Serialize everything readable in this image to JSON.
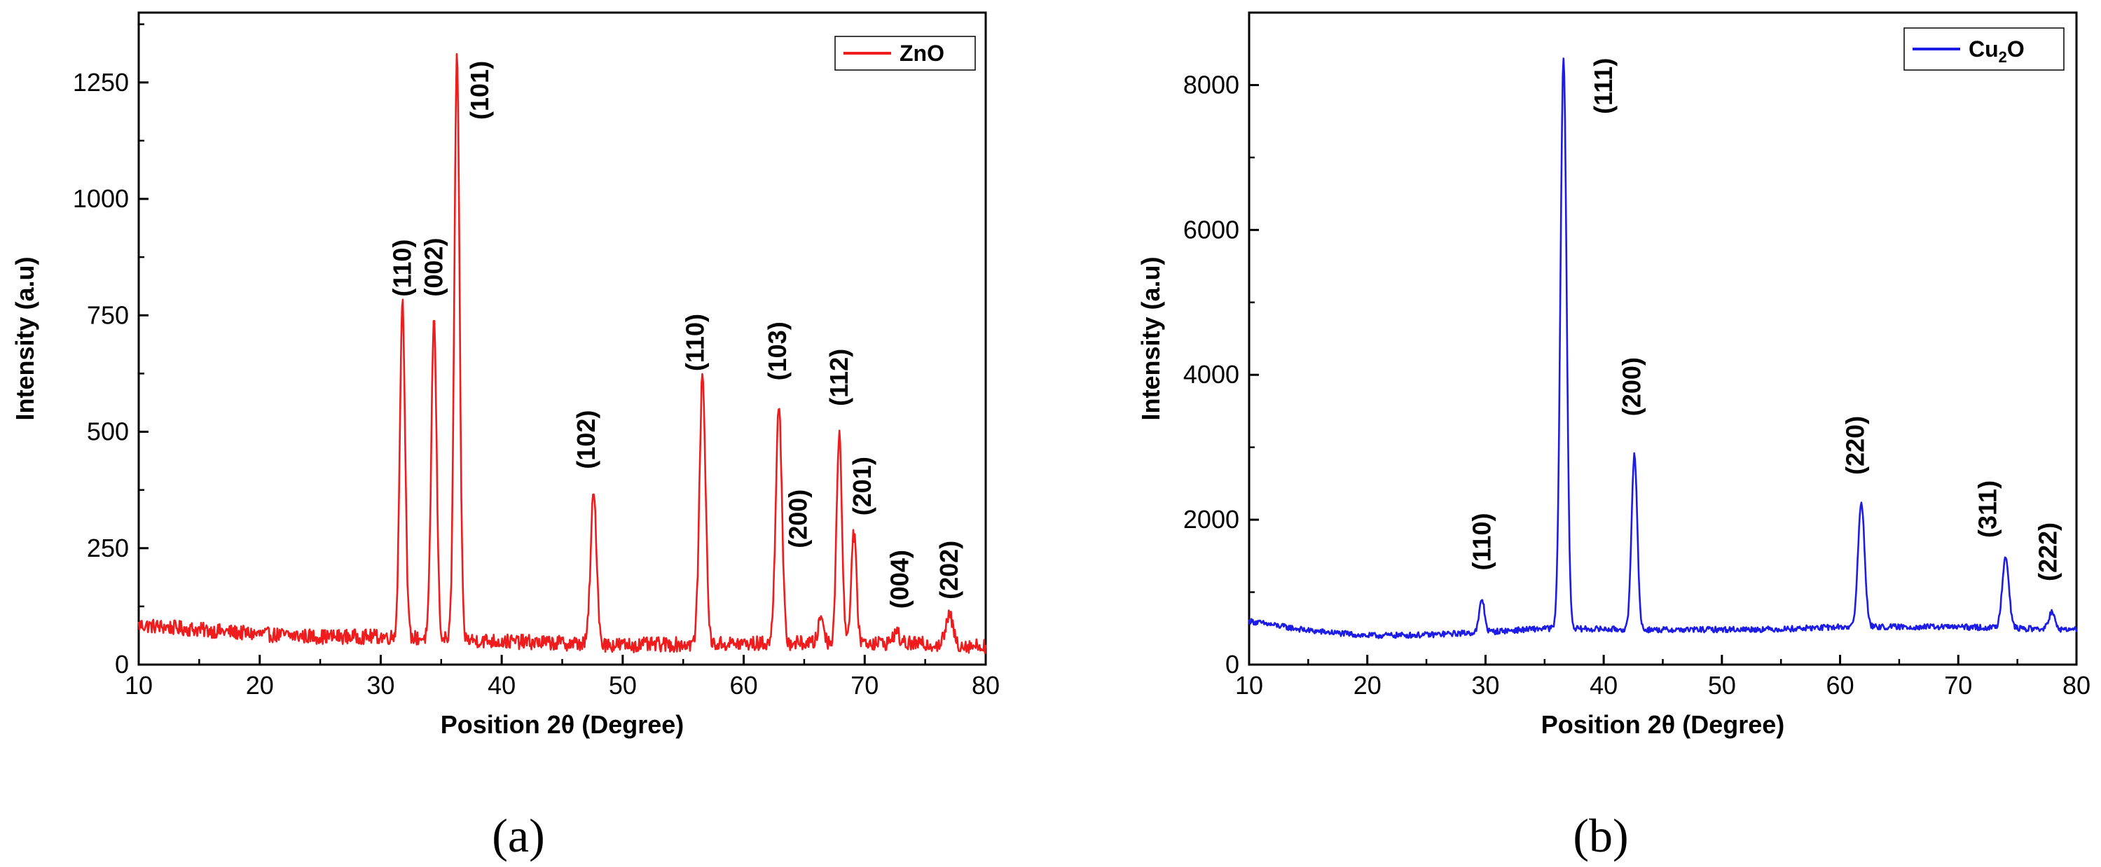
{
  "chart_data": [
    {
      "id": "a",
      "type": "line",
      "title": "",
      "caption": "(a)",
      "xlabel": "Position 2θ (Degree)",
      "ylabel": "Intensity (a.u)",
      "xlim": [
        10,
        80
      ],
      "ylim": [
        0,
        1400
      ],
      "xticks": [
        10,
        20,
        30,
        40,
        50,
        60,
        70,
        80
      ],
      "yticks": [
        0,
        250,
        500,
        750,
        1000,
        1250
      ],
      "grid": false,
      "legend_position": "top-right",
      "series": [
        {
          "name": "ZnO",
          "color": "#ee1c1c",
          "baseline": [
            [
              10,
              85
            ],
            [
              15,
              75
            ],
            [
              20,
              65
            ],
            [
              25,
              60
            ],
            [
              30,
              60
            ],
            [
              40,
              50
            ],
            [
              50,
              42
            ],
            [
              60,
              45
            ],
            [
              70,
              48
            ],
            [
              80,
              40
            ]
          ],
          "noise": 16,
          "peaks": [
            {
              "x": 31.8,
              "y": 780,
              "width": 0.22
            },
            {
              "x": 34.4,
              "y": 740,
              "width": 0.22
            },
            {
              "x": 36.3,
              "y": 1300,
              "width": 0.22
            },
            {
              "x": 47.6,
              "y": 365,
              "width": 0.25
            },
            {
              "x": 56.6,
              "y": 620,
              "width": 0.25
            },
            {
              "x": 62.9,
              "y": 560,
              "width": 0.25
            },
            {
              "x": 66.4,
              "y": 105,
              "width": 0.22
            },
            {
              "x": 67.9,
              "y": 500,
              "width": 0.22
            },
            {
              "x": 69.1,
              "y": 280,
              "width": 0.22
            },
            {
              "x": 72.6,
              "y": 70,
              "width": 0.25
            },
            {
              "x": 77.0,
              "y": 105,
              "width": 0.3
            }
          ]
        }
      ],
      "annotations": [
        {
          "text": "(110)",
          "x": 31.8,
          "y": 790
        },
        {
          "text": "(002)",
          "x": 34.4,
          "y": 790
        },
        {
          "text": "(101)",
          "x": 38.2,
          "y": 1170
        },
        {
          "text": "(102)",
          "x": 47.0,
          "y": 420
        },
        {
          "text": "(110)",
          "x": 56.0,
          "y": 630
        },
        {
          "text": "(103)",
          "x": 62.8,
          "y": 610
        },
        {
          "text": "(200)",
          "x": 64.5,
          "y": 250
        },
        {
          "text": "(112)",
          "x": 67.9,
          "y": 555
        },
        {
          "text": "(201)",
          "x": 69.8,
          "y": 320
        },
        {
          "text": "(004)",
          "x": 72.9,
          "y": 120
        },
        {
          "text": "(202)",
          "x": 77.0,
          "y": 140
        }
      ]
    },
    {
      "id": "b",
      "type": "line",
      "title": "",
      "caption": "(b)",
      "xlabel": "Position 2θ (Degree)",
      "ylabel": "Intensity (a.u)",
      "xlim": [
        10,
        80
      ],
      "ylim": [
        0,
        9000
      ],
      "xticks": [
        10,
        20,
        30,
        40,
        50,
        60,
        70,
        80
      ],
      "yticks": [
        0,
        2000,
        4000,
        6000,
        8000
      ],
      "grid": false,
      "legend_position": "top-right",
      "series": [
        {
          "name": "Cu₂O",
          "color": "#1c1ce6",
          "legend_main": "Cu",
          "legend_sub": "2",
          "legend_tail": "O",
          "baseline": [
            [
              10,
              600
            ],
            [
              15,
              470
            ],
            [
              20,
              400
            ],
            [
              25,
              410
            ],
            [
              30,
              450
            ],
            [
              35,
              500
            ],
            [
              45,
              480
            ],
            [
              55,
              490
            ],
            [
              60,
              520
            ],
            [
              70,
              520
            ],
            [
              80,
              480
            ]
          ],
          "noise": 40,
          "peaks": [
            {
              "x": 29.7,
              "y": 900,
              "width": 0.22
            },
            {
              "x": 36.6,
              "y": 8380,
              "width": 0.26
            },
            {
              "x": 42.6,
              "y": 2920,
              "width": 0.24
            },
            {
              "x": 61.8,
              "y": 2230,
              "width": 0.28
            },
            {
              "x": 74.0,
              "y": 1500,
              "width": 0.28
            },
            {
              "x": 77.9,
              "y": 720,
              "width": 0.25
            }
          ]
        }
      ],
      "annotations": [
        {
          "text": "(110)",
          "x": 29.7,
          "y": 1300
        },
        {
          "text": "(111)",
          "x": 40.0,
          "y": 7600
        },
        {
          "text": "(200)",
          "x": 42.4,
          "y": 3430
        },
        {
          "text": "(220)",
          "x": 61.3,
          "y": 2620
        },
        {
          "text": "(311)",
          "x": 72.5,
          "y": 1750
        },
        {
          "text": "(222)",
          "x": 77.6,
          "y": 1150
        }
      ]
    }
  ]
}
